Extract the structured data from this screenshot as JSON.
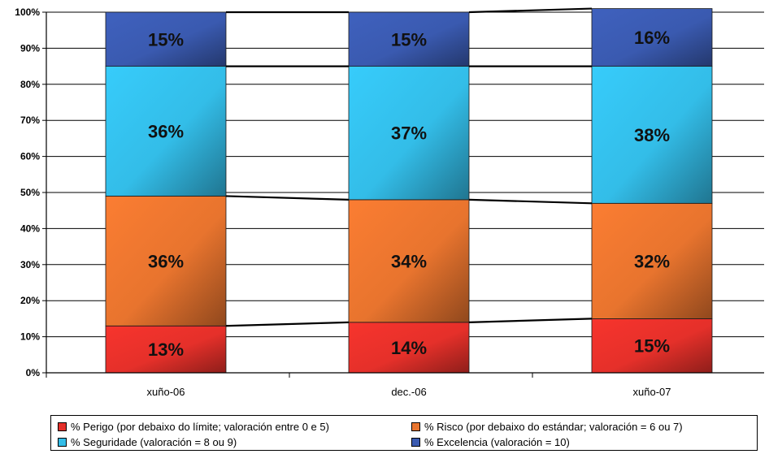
{
  "chart_data": {
    "type": "bar",
    "stacked": true,
    "percent": true,
    "categories": [
      "xuño-06",
      "dec.-06",
      "xuño-07"
    ],
    "series": [
      {
        "name": "% Perigo (por debaixo do límite; valoración entre 0 e 5)",
        "values": [
          13,
          14,
          15
        ],
        "labels": [
          "13%",
          "14%",
          "15%"
        ],
        "color": "#e5302a"
      },
      {
        "name": "% Risco (por debaixo do estándar; valoración = 6 ou 7)",
        "values": [
          36,
          34,
          32
        ],
        "labels": [
          "36%",
          "34%",
          "32%"
        ],
        "color": "#e8742e"
      },
      {
        "name": "% Seguridade (valoración = 8 ou 9)",
        "values": [
          36,
          37,
          38
        ],
        "labels": [
          "36%",
          "37%",
          "38%"
        ],
        "color": "#33bde8"
      },
      {
        "name": "% Excelencia (valoración = 10)",
        "values": [
          15,
          15,
          16
        ],
        "labels": [
          "15%",
          "15%",
          "16%"
        ],
        "color": "#3a5ab0"
      }
    ],
    "y_ticks": [
      "0%",
      "10%",
      "20%",
      "30%",
      "40%",
      "50%",
      "60%",
      "70%",
      "80%",
      "90%",
      "100%"
    ],
    "ylim": [
      0,
      100
    ],
    "grid": true,
    "series_lines": true,
    "legend_position": "bottom"
  }
}
